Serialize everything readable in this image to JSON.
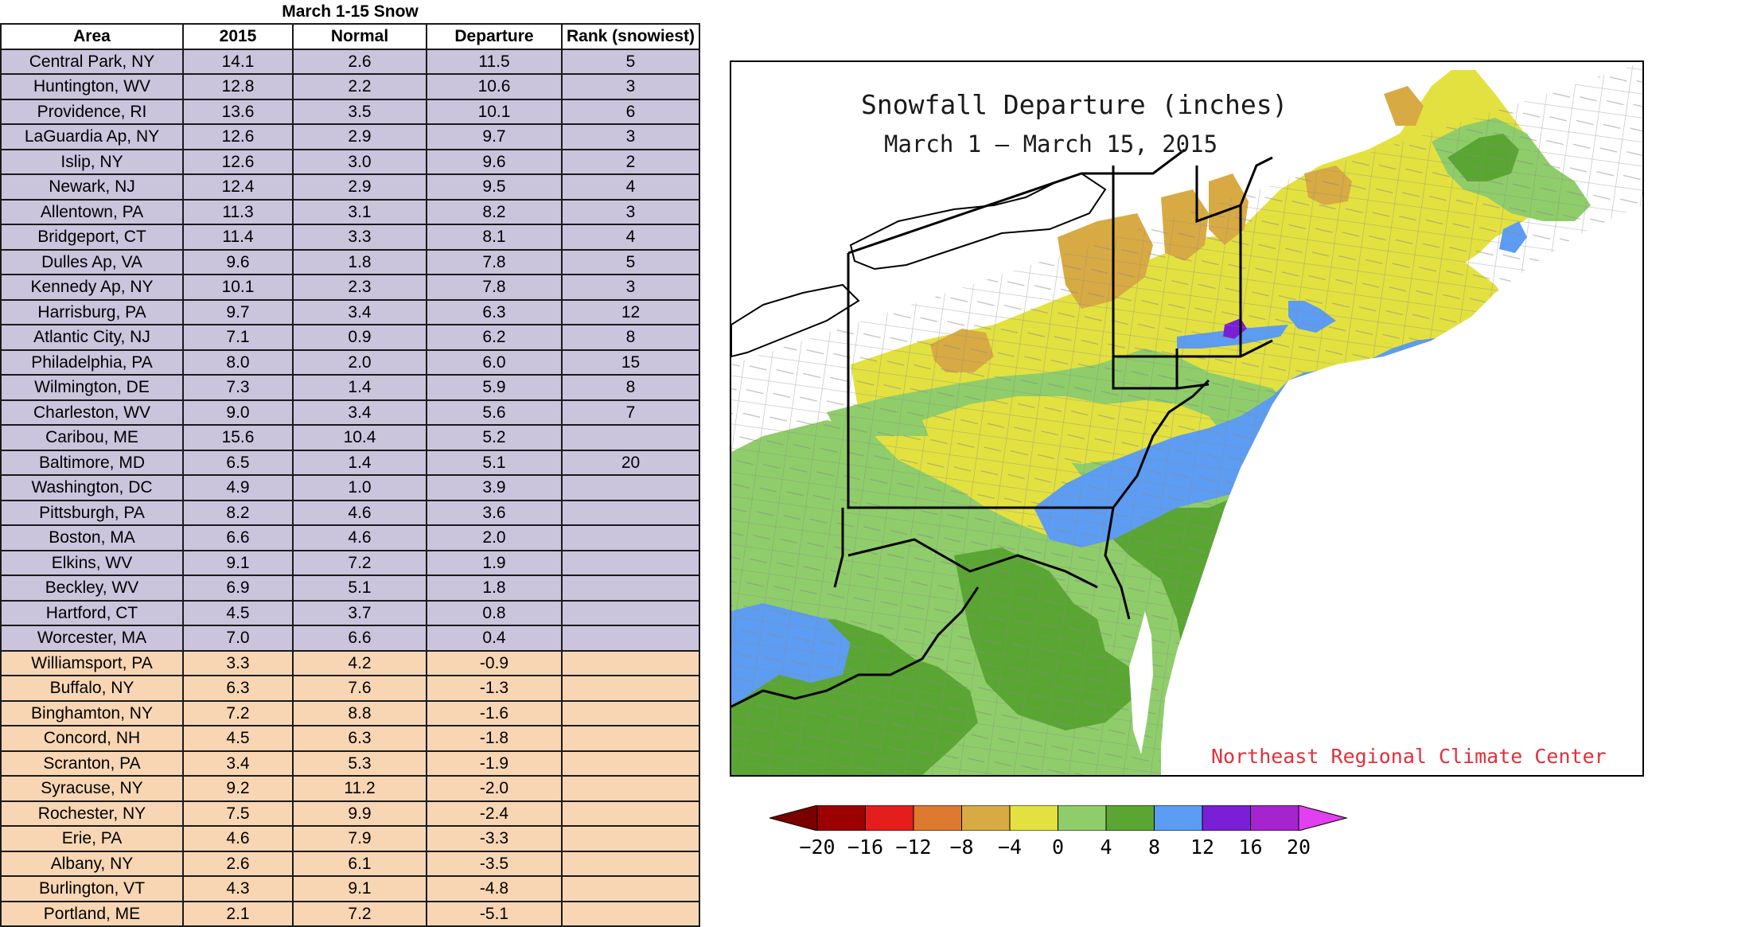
{
  "table": {
    "caption": "March 1-15 Snow",
    "headers": [
      "Area",
      "2015",
      "Normal",
      "Departure",
      "Rank (snowiest)"
    ],
    "rows": [
      {
        "area": "Central Park, NY",
        "y2015": "14.1",
        "normal": "2.6",
        "departure": "11.5",
        "rank": "5",
        "group": "pos"
      },
      {
        "area": "Huntington, WV",
        "y2015": "12.8",
        "normal": "2.2",
        "departure": "10.6",
        "rank": "3",
        "group": "pos"
      },
      {
        "area": "Providence, RI",
        "y2015": "13.6",
        "normal": "3.5",
        "departure": "10.1",
        "rank": "6",
        "group": "pos"
      },
      {
        "area": "LaGuardia Ap, NY",
        "y2015": "12.6",
        "normal": "2.9",
        "departure": "9.7",
        "rank": "3",
        "group": "pos"
      },
      {
        "area": "Islip, NY",
        "y2015": "12.6",
        "normal": "3.0",
        "departure": "9.6",
        "rank": "2",
        "group": "pos"
      },
      {
        "area": "Newark, NJ",
        "y2015": "12.4",
        "normal": "2.9",
        "departure": "9.5",
        "rank": "4",
        "group": "pos"
      },
      {
        "area": "Allentown, PA",
        "y2015": "11.3",
        "normal": "3.1",
        "departure": "8.2",
        "rank": "3",
        "group": "pos"
      },
      {
        "area": "Bridgeport, CT",
        "y2015": "11.4",
        "normal": "3.3",
        "departure": "8.1",
        "rank": "4",
        "group": "pos"
      },
      {
        "area": "Dulles Ap, VA",
        "y2015": "9.6",
        "normal": "1.8",
        "departure": "7.8",
        "rank": "5",
        "group": "pos"
      },
      {
        "area": "Kennedy Ap, NY",
        "y2015": "10.1",
        "normal": "2.3",
        "departure": "7.8",
        "rank": "3",
        "group": "pos"
      },
      {
        "area": "Harrisburg, PA",
        "y2015": "9.7",
        "normal": "3.4",
        "departure": "6.3",
        "rank": "12",
        "group": "pos"
      },
      {
        "area": "Atlantic City, NJ",
        "y2015": "7.1",
        "normal": "0.9",
        "departure": "6.2",
        "rank": "8",
        "group": "pos"
      },
      {
        "area": "Philadelphia, PA",
        "y2015": "8.0",
        "normal": "2.0",
        "departure": "6.0",
        "rank": "15",
        "group": "pos"
      },
      {
        "area": "Wilmington, DE",
        "y2015": "7.3",
        "normal": "1.4",
        "departure": "5.9",
        "rank": "8",
        "group": "pos"
      },
      {
        "area": "Charleston, WV",
        "y2015": "9.0",
        "normal": "3.4",
        "departure": "5.6",
        "rank": "7",
        "group": "pos"
      },
      {
        "area": "Caribou, ME",
        "y2015": "15.6",
        "normal": "10.4",
        "departure": "5.2",
        "rank": "",
        "group": "pos"
      },
      {
        "area": "Baltimore, MD",
        "y2015": "6.5",
        "normal": "1.4",
        "departure": "5.1",
        "rank": "20",
        "group": "pos"
      },
      {
        "area": "Washington, DC",
        "y2015": "4.9",
        "normal": "1.0",
        "departure": "3.9",
        "rank": "",
        "group": "pos"
      },
      {
        "area": "Pittsburgh, PA",
        "y2015": "8.2",
        "normal": "4.6",
        "departure": "3.6",
        "rank": "",
        "group": "pos"
      },
      {
        "area": "Boston, MA",
        "y2015": "6.6",
        "normal": "4.6",
        "departure": "2.0",
        "rank": "",
        "group": "pos"
      },
      {
        "area": "Elkins, WV",
        "y2015": "9.1",
        "normal": "7.2",
        "departure": "1.9",
        "rank": "",
        "group": "pos"
      },
      {
        "area": "Beckley, WV",
        "y2015": "6.9",
        "normal": "5.1",
        "departure": "1.8",
        "rank": "",
        "group": "pos"
      },
      {
        "area": "Hartford, CT",
        "y2015": "4.5",
        "normal": "3.7",
        "departure": "0.8",
        "rank": "",
        "group": "pos"
      },
      {
        "area": "Worcester, MA",
        "y2015": "7.0",
        "normal": "6.6",
        "departure": "0.4",
        "rank": "",
        "group": "pos"
      },
      {
        "area": "Williamsport, PA",
        "y2015": "3.3",
        "normal": "4.2",
        "departure": "-0.9",
        "rank": "",
        "group": "neg"
      },
      {
        "area": "Buffalo, NY",
        "y2015": "6.3",
        "normal": "7.6",
        "departure": "-1.3",
        "rank": "",
        "group": "neg"
      },
      {
        "area": "Binghamton, NY",
        "y2015": "7.2",
        "normal": "8.8",
        "departure": "-1.6",
        "rank": "",
        "group": "neg"
      },
      {
        "area": "Concord, NH",
        "y2015": "4.5",
        "normal": "6.3",
        "departure": "-1.8",
        "rank": "",
        "group": "neg"
      },
      {
        "area": "Scranton, PA",
        "y2015": "3.4",
        "normal": "5.3",
        "departure": "-1.9",
        "rank": "",
        "group": "neg"
      },
      {
        "area": "Syracuse, NY",
        "y2015": "9.2",
        "normal": "11.2",
        "departure": "-2.0",
        "rank": "",
        "group": "neg"
      },
      {
        "area": "Rochester, NY",
        "y2015": "7.5",
        "normal": "9.9",
        "departure": "-2.4",
        "rank": "",
        "group": "neg"
      },
      {
        "area": "Erie, PA",
        "y2015": "4.6",
        "normal": "7.9",
        "departure": "-3.3",
        "rank": "",
        "group": "neg"
      },
      {
        "area": "Albany, NY",
        "y2015": "2.6",
        "normal": "6.1",
        "departure": "-3.5",
        "rank": "",
        "group": "neg"
      },
      {
        "area": "Burlington, VT",
        "y2015": "4.3",
        "normal": "9.1",
        "departure": "-4.8",
        "rank": "",
        "group": "neg"
      },
      {
        "area": "Portland, ME",
        "y2015": "2.1",
        "normal": "7.2",
        "departure": "-5.1",
        "rank": "",
        "group": "neg"
      }
    ],
    "colors": {
      "positive_row": "#cac4dd",
      "negative_row": "#f8d6b3"
    }
  },
  "map": {
    "title_line1": "Snowfall Departure (inches)",
    "title_line2": "March 1 – March 15, 2015",
    "credit": "Northeast Regional Climate Center",
    "colors": {
      "water": "#ffffff",
      "cat_-4_0": "#e3e13f",
      "cat_-8_-4": "#d8aa43",
      "cat_0_4": "#8fcd6a",
      "cat_4_8": "#5aa632",
      "cat_8_12": "#5c9cf2",
      "cat_12_16": "#7a1fd6",
      "county_lines": "#8a8a8a",
      "state_lines": "#000000"
    }
  },
  "colorbar": {
    "labels": [
      "-20",
      "-16",
      "-12",
      "-8",
      "-4",
      "0",
      "4",
      "8",
      "12",
      "16",
      "20"
    ],
    "under_color": "#7a0000",
    "over_color": "#e040f0",
    "bin_colors": [
      "#9c0000",
      "#e41d1d",
      "#dd7a2f",
      "#d8aa43",
      "#e3e13f",
      "#8fcd6a",
      "#5aa632",
      "#5c9cf2",
      "#7a1fd6",
      "#a524cf"
    ]
  }
}
